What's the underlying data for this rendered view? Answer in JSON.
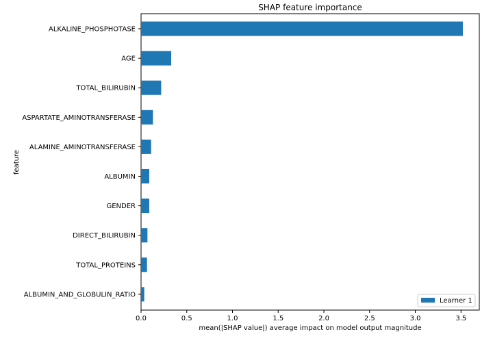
{
  "chart_data": {
    "type": "bar",
    "orientation": "horizontal",
    "title": "SHAP feature importance",
    "xlabel": "mean(|SHAP value|) average impact on model output magnitude",
    "ylabel": "feature",
    "xlim": [
      0,
      3.7
    ],
    "xticks": [
      "0.0",
      "0.5",
      "1.0",
      "1.5",
      "2.0",
      "2.5",
      "3.0",
      "3.5"
    ],
    "xtick_values": [
      0,
      0.5,
      1.0,
      1.5,
      2.0,
      2.5,
      3.0,
      3.5
    ],
    "categories": [
      "ALKALINE_PHOSPHOTASE",
      "AGE",
      "TOTAL_BILIRUBIN",
      "ASPARTATE_AMINOTRANSFERASE",
      "ALAMINE_AMINOTRANSFERASE",
      "ALBUMIN",
      "GENDER",
      "DIRECT_BILIRUBIN",
      "TOTAL_PROTEINS",
      "ALBUMIN_AND_GLOBULIN_RATIO"
    ],
    "series": [
      {
        "name": "Learner 1",
        "color": "#1f77b4",
        "values": [
          3.52,
          0.33,
          0.22,
          0.13,
          0.11,
          0.09,
          0.09,
          0.07,
          0.065,
          0.035
        ]
      }
    ],
    "grid": false,
    "legend_position": "lower-right"
  }
}
